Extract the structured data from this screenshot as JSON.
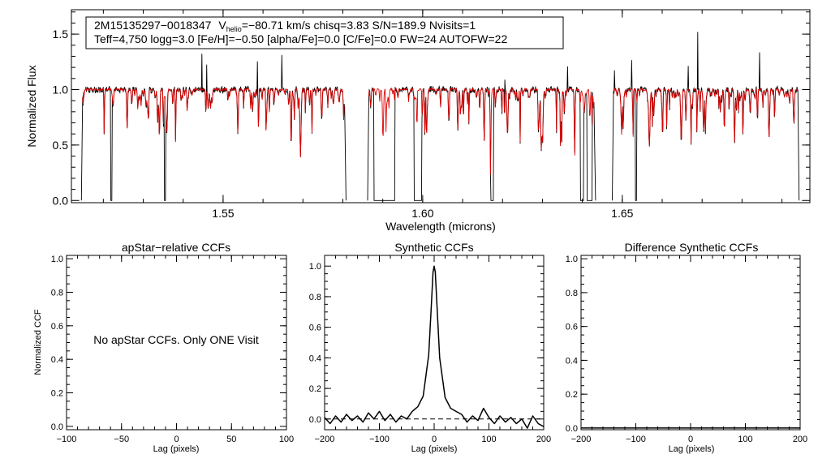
{
  "figure": {
    "annotation": {
      "line1": {
        "id": "2M15135297−0018347",
        "vhelio_label": "V",
        "vhelio_sub": "helio",
        "vhelio_rest": "=−80.71 km/s  chisq=3.83  S/N=189.9  Nvisits=1"
      },
      "line2": "Teff=4,750 logg=3.0 [Fe/H]=−0.50 [alpha/Fe]=0.0 [C/Fe]=0.0 FW=24 AUTOFW=22"
    }
  },
  "chart_data": [
    {
      "type": "line",
      "id": "spectrum",
      "title": "",
      "xlabel": "Wavelength (microns)",
      "ylabel": "Normalized Flux",
      "xlim": [
        1.512,
        1.697
      ],
      "ylim": [
        -0.02,
        1.72
      ],
      "xticks": [
        1.55,
        1.6,
        1.65
      ],
      "xtick_labels": [
        "1.55",
        "1.60",
        "1.65"
      ],
      "yticks": [
        0.0,
        0.5,
        1.0,
        1.5
      ],
      "ytick_labels": [
        "0.0",
        "0.5",
        "1.0",
        "1.5"
      ],
      "chips": [
        [
          1.5145,
          1.5808
        ],
        [
          1.5862,
          1.6433
        ],
        [
          1.6475,
          1.6943
        ]
      ],
      "deep_gaps": [
        1.5218,
        1.5222,
        1.5352,
        1.5356,
        1.5878,
        1.593,
        1.5978,
        1.5998,
        1.617,
        1.6178,
        1.6395,
        1.6403,
        1.6412,
        1.6425,
        1.6532,
        1.6536
      ],
      "series": [
        {
          "color": "#000000",
          "role": "observed"
        },
        {
          "color": "#dd0000",
          "role": "model"
        }
      ]
    },
    {
      "type": "line",
      "id": "apstar_ccf",
      "title": "apStar−relative CCFs",
      "xlabel": "Lag (pixels)",
      "ylabel": "Normalized CCF",
      "xlim": [
        -100,
        100
      ],
      "ylim": [
        -0.02,
        1.02
      ],
      "xticks": [
        -100,
        -50,
        0,
        50,
        100
      ],
      "xtick_labels": [
        "−100",
        "−50",
        "0",
        "50",
        "100"
      ],
      "yticks": [
        0.0,
        0.2,
        0.4,
        0.6,
        0.8,
        1.0
      ],
      "ytick_labels": [
        "0.0",
        "0.2",
        "0.4",
        "0.6",
        "0.8",
        "1.0"
      ],
      "message": "No apStar CCFs.  Only ONE Visit"
    },
    {
      "type": "line",
      "id": "synthetic_ccf",
      "title": "Synthetic CCFs",
      "xlabel": "Lag (pixels)",
      "ylabel": "",
      "xlim": [
        -200,
        200
      ],
      "ylim": [
        -0.07,
        1.07
      ],
      "xticks": [
        -200,
        -100,
        0,
        100,
        200
      ],
      "xtick_labels": [
        "−200",
        "−100",
        "0",
        "100",
        "200"
      ],
      "yticks": [
        0.0,
        0.2,
        0.4,
        0.6,
        0.8,
        1.0
      ],
      "ytick_labels": [
        "0.0",
        "0.2",
        "0.4",
        "0.6",
        "0.8",
        "1.0"
      ],
      "x": [
        -200,
        -190,
        -180,
        -170,
        -160,
        -150,
        -140,
        -130,
        -120,
        -110,
        -100,
        -90,
        -80,
        -70,
        -60,
        -50,
        -40,
        -30,
        -20,
        -10,
        -5,
        -2,
        0,
        2,
        5,
        10,
        20,
        30,
        40,
        50,
        60,
        70,
        80,
        90,
        100,
        110,
        120,
        130,
        140,
        150,
        160,
        170,
        180,
        190,
        200
      ],
      "y": [
        0.01,
        -0.03,
        0.02,
        -0.02,
        0.03,
        -0.01,
        0.02,
        -0.02,
        0.04,
        0.0,
        0.05,
        -0.01,
        0.03,
        -0.02,
        0.02,
        0.0,
        0.05,
        0.08,
        0.15,
        0.42,
        0.75,
        0.96,
        1.0,
        0.96,
        0.75,
        0.4,
        0.14,
        0.07,
        0.05,
        0.03,
        -0.02,
        0.02,
        -0.01,
        0.07,
        0.01,
        -0.03,
        0.02,
        -0.02,
        0.01,
        -0.03,
        0.0,
        -0.06,
        0.02,
        -0.03,
        -0.05
      ],
      "baseline": 0.0
    },
    {
      "type": "line",
      "id": "difference_ccf",
      "title": "Difference Synthetic CCFs",
      "xlabel": "Lag (pixels)",
      "ylabel": "",
      "xlim": [
        -200,
        200
      ],
      "ylim": [
        -0.01,
        1.02
      ],
      "xticks": [
        -200,
        -100,
        0,
        100,
        200
      ],
      "xtick_labels": [
        "−200",
        "−100",
        "0",
        "100",
        "200"
      ],
      "yticks": [
        0.0,
        0.2,
        0.4,
        0.6,
        0.8,
        1.0
      ],
      "ytick_labels": [
        "0.0",
        "0.2",
        "0.4",
        "0.6",
        "0.8",
        "1.0"
      ],
      "x": [
        -200,
        200
      ],
      "y": [
        0.0,
        0.0
      ]
    }
  ]
}
